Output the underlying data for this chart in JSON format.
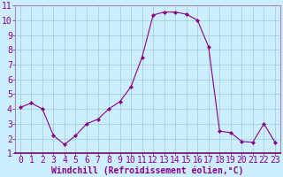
{
  "x": [
    0,
    1,
    2,
    3,
    4,
    5,
    6,
    7,
    8,
    9,
    10,
    11,
    12,
    13,
    14,
    15,
    16,
    17,
    18,
    19,
    20,
    21,
    22,
    23
  ],
  "y": [
    4.1,
    4.4,
    4.0,
    2.2,
    1.6,
    2.2,
    3.0,
    3.3,
    4.0,
    4.5,
    5.5,
    7.5,
    10.35,
    10.55,
    10.55,
    10.4,
    10.0,
    8.2,
    2.5,
    2.4,
    1.8,
    1.75,
    3.0,
    1.75
  ],
  "line_color": "#880088",
  "marker": "D",
  "marker_size": 2.0,
  "bg_color": "#cceeff",
  "grid_color": "#99cccc",
  "xlabel": "Windchill (Refroidissement éolien,°C)",
  "xlim": [
    -0.5,
    23.5
  ],
  "ylim": [
    1,
    11
  ],
  "yticks": [
    1,
    2,
    3,
    4,
    5,
    6,
    7,
    8,
    9,
    10,
    11
  ],
  "xticks": [
    0,
    1,
    2,
    3,
    4,
    5,
    6,
    7,
    8,
    9,
    10,
    11,
    12,
    13,
    14,
    15,
    16,
    17,
    18,
    19,
    20,
    21,
    22,
    23
  ],
  "tick_fontsize": 7,
  "xlabel_fontsize": 7,
  "spine_color": "#aa88aa"
}
